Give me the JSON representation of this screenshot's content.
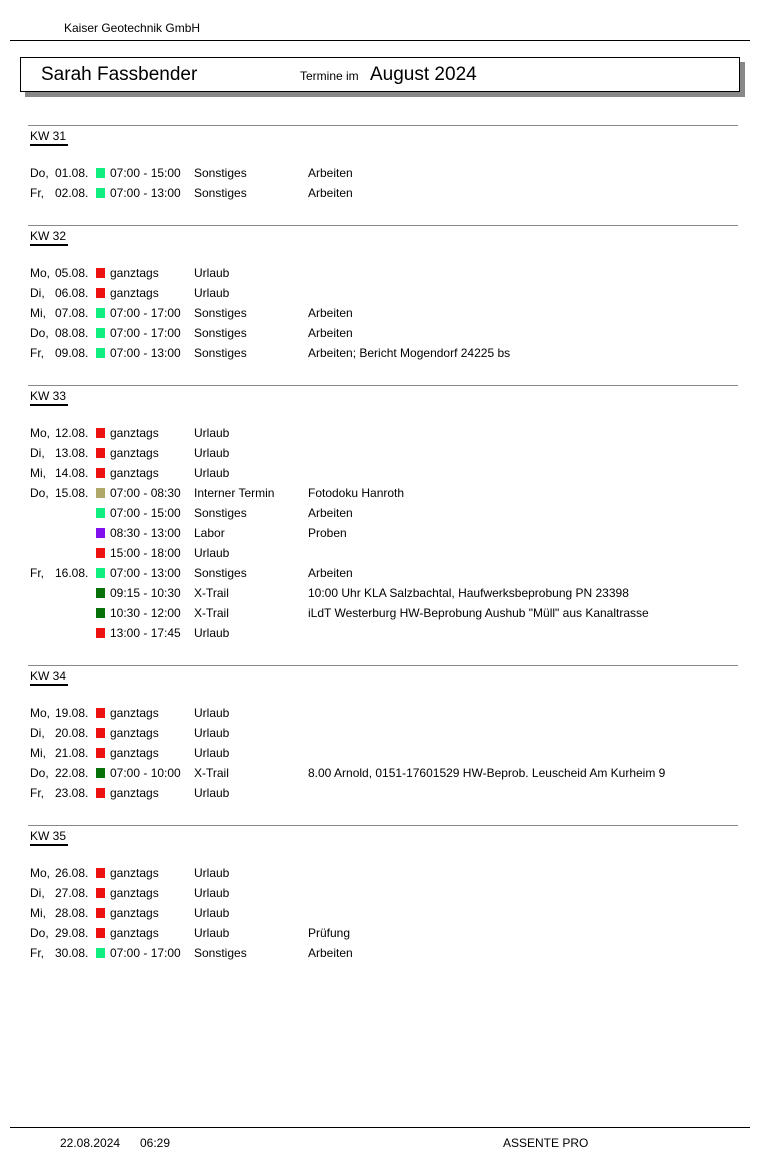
{
  "header": {
    "company": "Kaiser Geotechnik GmbH",
    "person": "Sarah Fassbender",
    "subtitle": "Termine im",
    "month": "August 2024"
  },
  "colors": {
    "Sonstiges": "#10ee80",
    "Urlaub": "#ee1111",
    "Interner Termin": "#b0a868",
    "Labor": "#8010ee",
    "X-Trail": "#087008"
  },
  "weeks": [
    {
      "kw": "KW 31",
      "entries": [
        {
          "day": "Do,",
          "date": "01.08.",
          "time": "07:00 - 15:00",
          "type": "Sonstiges",
          "desc": "Arbeiten"
        },
        {
          "day": "Fr,",
          "date": "02.08.",
          "time": "07:00 - 13:00",
          "type": "Sonstiges",
          "desc": "Arbeiten"
        }
      ]
    },
    {
      "kw": "KW 32",
      "entries": [
        {
          "day": "Mo,",
          "date": "05.08.",
          "time": "ganztags",
          "type": "Urlaub",
          "desc": ""
        },
        {
          "day": "Di,",
          "date": "06.08.",
          "time": "ganztags",
          "type": "Urlaub",
          "desc": ""
        },
        {
          "day": "Mi,",
          "date": "07.08.",
          "time": "07:00 - 17:00",
          "type": "Sonstiges",
          "desc": "Arbeiten"
        },
        {
          "day": "Do,",
          "date": "08.08.",
          "time": "07:00 - 17:00",
          "type": "Sonstiges",
          "desc": "Arbeiten"
        },
        {
          "day": "Fr,",
          "date": "09.08.",
          "time": "07:00 - 13:00",
          "type": "Sonstiges",
          "desc": "Arbeiten; Bericht Mogendorf 24225 bs"
        }
      ]
    },
    {
      "kw": "KW 33",
      "entries": [
        {
          "day": "Mo,",
          "date": "12.08.",
          "time": "ganztags",
          "type": "Urlaub",
          "desc": ""
        },
        {
          "day": "Di,",
          "date": "13.08.",
          "time": "ganztags",
          "type": "Urlaub",
          "desc": ""
        },
        {
          "day": "Mi,",
          "date": "14.08.",
          "time": "ganztags",
          "type": "Urlaub",
          "desc": ""
        },
        {
          "day": "Do,",
          "date": "15.08.",
          "time": "07:00 - 08:30",
          "type": "Interner Termin",
          "desc": "Fotodoku Hanroth"
        },
        {
          "day": "",
          "date": "",
          "time": "07:00 - 15:00",
          "type": "Sonstiges",
          "desc": "Arbeiten"
        },
        {
          "day": "",
          "date": "",
          "time": "08:30 - 13:00",
          "type": "Labor",
          "desc": "Proben"
        },
        {
          "day": "",
          "date": "",
          "time": "15:00 - 18:00",
          "type": "Urlaub",
          "desc": ""
        },
        {
          "day": "Fr,",
          "date": "16.08.",
          "time": "07:00 - 13:00",
          "type": "Sonstiges",
          "desc": "Arbeiten"
        },
        {
          "day": "",
          "date": "",
          "time": "09:15 - 10:30",
          "type": "X-Trail",
          "desc": "10:00 Uhr KLA Salzbachtal, Haufwerksbeprobung PN 23398"
        },
        {
          "day": "",
          "date": "",
          "time": "10:30 - 12:00",
          "type": "X-Trail",
          "desc": "iLdT Westerburg HW-Beprobung Aushub \"Müll\" aus Kanaltrasse"
        },
        {
          "day": "",
          "date": "",
          "time": "13:00 - 17:45",
          "type": "Urlaub",
          "desc": ""
        }
      ]
    },
    {
      "kw": "KW 34",
      "entries": [
        {
          "day": "Mo,",
          "date": "19.08.",
          "time": "ganztags",
          "type": "Urlaub",
          "desc": ""
        },
        {
          "day": "Di,",
          "date": "20.08.",
          "time": "ganztags",
          "type": "Urlaub",
          "desc": ""
        },
        {
          "day": "Mi,",
          "date": "21.08.",
          "time": "ganztags",
          "type": "Urlaub",
          "desc": ""
        },
        {
          "day": "Do,",
          "date": "22.08.",
          "time": "07:00 - 10:00",
          "type": "X-Trail",
          "desc": "8.00 Arnold, 0151-17601529 HW-Beprob. Leuscheid Am Kurheim 9"
        },
        {
          "day": "Fr,",
          "date": "23.08.",
          "time": "ganztags",
          "type": "Urlaub",
          "desc": ""
        }
      ]
    },
    {
      "kw": "KW 35",
      "entries": [
        {
          "day": "Mo,",
          "date": "26.08.",
          "time": "ganztags",
          "type": "Urlaub",
          "desc": ""
        },
        {
          "day": "Di,",
          "date": "27.08.",
          "time": "ganztags",
          "type": "Urlaub",
          "desc": ""
        },
        {
          "day": "Mi,",
          "date": "28.08.",
          "time": "ganztags",
          "type": "Urlaub",
          "desc": ""
        },
        {
          "day": "Do,",
          "date": "29.08.",
          "time": "ganztags",
          "type": "Urlaub",
          "desc": "Prüfung"
        },
        {
          "day": "Fr,",
          "date": "30.08.",
          "time": "07:00 - 17:00",
          "type": "Sonstiges",
          "desc": "Arbeiten"
        }
      ]
    }
  ],
  "footer": {
    "date": "22.08.2024",
    "time": "06:29",
    "product": "ASSENTE PRO"
  }
}
